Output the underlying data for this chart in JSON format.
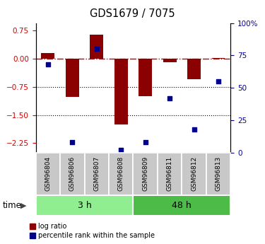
{
  "title": "GDS1679 / 7075",
  "samples": [
    "GSM96804",
    "GSM96806",
    "GSM96807",
    "GSM96808",
    "GSM96809",
    "GSM96811",
    "GSM96812",
    "GSM96813"
  ],
  "log_ratio": [
    0.15,
    -1.02,
    0.65,
    -1.75,
    -1.0,
    -0.1,
    -0.55,
    0.02
  ],
  "percentile_rank": [
    68,
    8,
    80,
    2,
    8,
    42,
    18,
    55
  ],
  "groups": [
    {
      "label": "3 h",
      "indices": [
        0,
        1,
        2,
        3
      ],
      "color": "#90EE90"
    },
    {
      "label": "48 h",
      "indices": [
        4,
        5,
        6,
        7
      ],
      "color": "#4CBB47"
    }
  ],
  "group_label": "time",
  "bar_color": "#8B0000",
  "scatter_color": "#00008B",
  "ylim_left": [
    -2.5,
    0.95
  ],
  "ylim_right": [
    0,
    100
  ],
  "yticks_left": [
    0.75,
    0,
    -0.75,
    -1.5,
    -2.25
  ],
  "yticks_right": [
    100,
    75,
    50,
    25,
    0
  ],
  "hlines": [
    -0.75,
    -1.5
  ],
  "zero_line_color": "#CC0000",
  "legend_log_ratio": "log ratio",
  "legend_percentile": "percentile rank within the sample",
  "bar_width": 0.55,
  "fig_width": 3.75,
  "fig_height": 3.45,
  "fig_dpi": 100
}
